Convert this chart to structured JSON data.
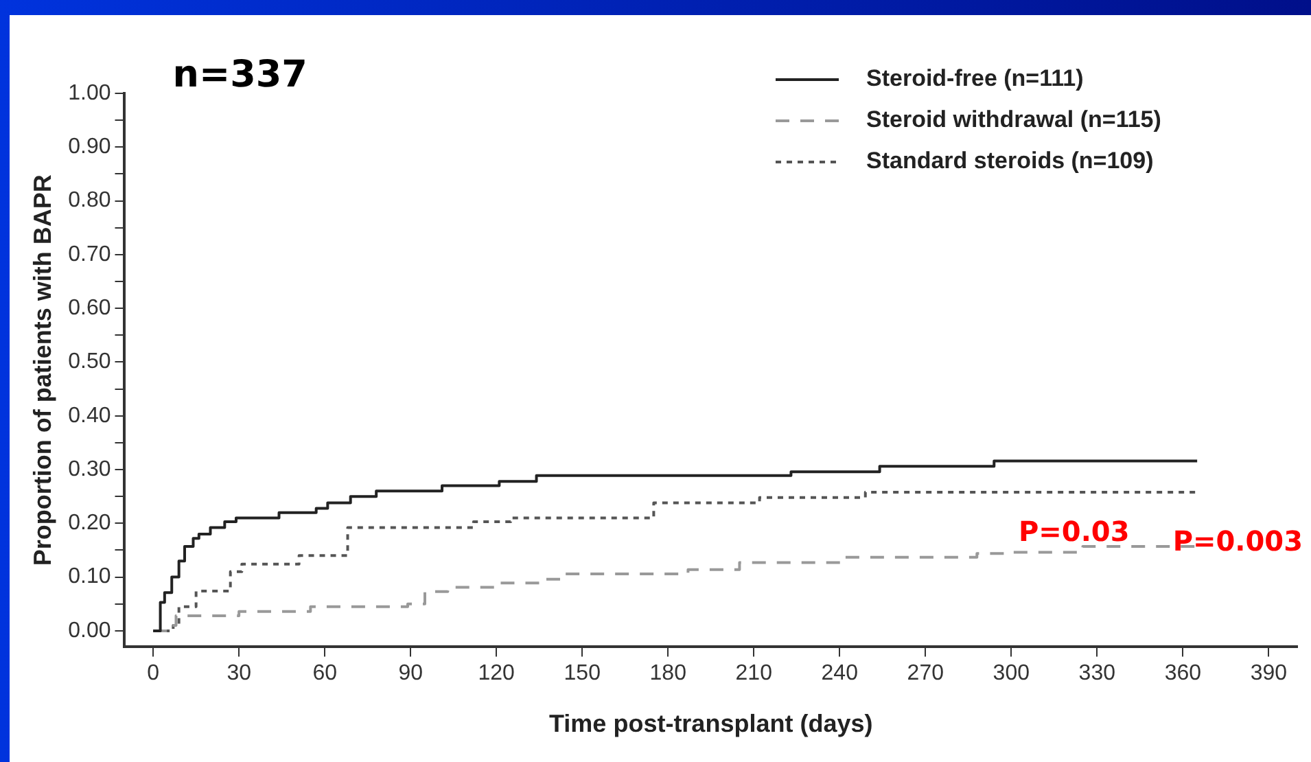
{
  "chart_data": {
    "type": "step",
    "xlabel": "Time post-transplant (days)",
    "ylabel": "Proportion of patients with BAPR",
    "annotations": [
      "n=337",
      "P=0.003",
      "P=0.03"
    ],
    "series": [
      {
        "name": "Steroid-free (n=111)",
        "color": "#222222",
        "line_style": "solid",
        "x": [
          0,
          2.5,
          4,
          6.5,
          9,
          11,
          14,
          16,
          20,
          25,
          29,
          44,
          57,
          61,
          69,
          78,
          101,
          121,
          134,
          223,
          254,
          294,
          365
        ],
        "values": [
          0,
          0.053,
          0.071,
          0.1,
          0.13,
          0.157,
          0.172,
          0.18,
          0.192,
          0.203,
          0.21,
          0.22,
          0.228,
          0.238,
          0.25,
          0.26,
          0.27,
          0.278,
          0.289,
          0.296,
          0.306,
          0.316,
          0.316
        ]
      },
      {
        "name": "Steroid withdrawal (n=115)",
        "color": "#999999",
        "line_style": "dashed",
        "x": [
          0,
          3,
          5,
          8,
          30,
          55,
          89,
          95,
          103,
          120,
          137,
          143,
          187,
          205,
          242,
          288,
          298,
          325,
          365
        ],
        "values": [
          0,
          0,
          0.01,
          0.028,
          0.036,
          0.045,
          0.05,
          0.073,
          0.081,
          0.089,
          0.096,
          0.106,
          0.114,
          0.127,
          0.137,
          0.144,
          0.146,
          0.157,
          0.157
        ]
      },
      {
        "name": "Standard steroids (n=109)",
        "color": "#555555",
        "line_style": "dotted",
        "x": [
          0,
          5,
          7,
          9,
          15,
          27,
          31,
          51,
          68,
          112,
          125,
          175,
          212,
          249,
          365
        ],
        "values": [
          0,
          0,
          0.01,
          0.045,
          0.074,
          0.11,
          0.124,
          0.14,
          0.192,
          0.203,
          0.21,
          0.238,
          0.248,
          0.258,
          0.258
        ]
      }
    ],
    "xlim": [
      -10,
      400
    ],
    "xticks": [
      0,
      30,
      60,
      90,
      120,
      150,
      180,
      210,
      240,
      270,
      300,
      330,
      360,
      390
    ],
    "ylim": [
      -0.03,
      1.0
    ],
    "yticks": [
      {
        "value": 0,
        "label": "0.00"
      },
      {
        "value": 0.05,
        "label": null
      },
      {
        "value": 0.1,
        "label": "0.10"
      },
      {
        "value": 0.15,
        "label": null
      },
      {
        "value": 0.2,
        "label": "0.20"
      },
      {
        "value": 0.25,
        "label": null
      },
      {
        "value": 0.3,
        "label": "0.30"
      },
      {
        "value": 0.35,
        "label": null
      },
      {
        "value": 0.4,
        "label": "0.40"
      },
      {
        "value": 0.45,
        "label": null
      },
      {
        "value": 0.5,
        "label": "0.50"
      },
      {
        "value": 0.55,
        "label": null
      },
      {
        "value": 0.6,
        "label": "0.60"
      },
      {
        "value": 0.65,
        "label": null
      },
      {
        "value": 0.7,
        "label": "0.70"
      },
      {
        "value": 0.75,
        "label": null
      },
      {
        "value": 0.8,
        "label": "0.80"
      },
      {
        "value": 0.85,
        "label": null
      },
      {
        "value": 0.9,
        "label": "0.90"
      },
      {
        "value": 0.95,
        "label": null
      },
      {
        "value": 1.0,
        "label": "1.00"
      }
    ],
    "grid": false,
    "legend": "top right",
    "marker": "none"
  }
}
